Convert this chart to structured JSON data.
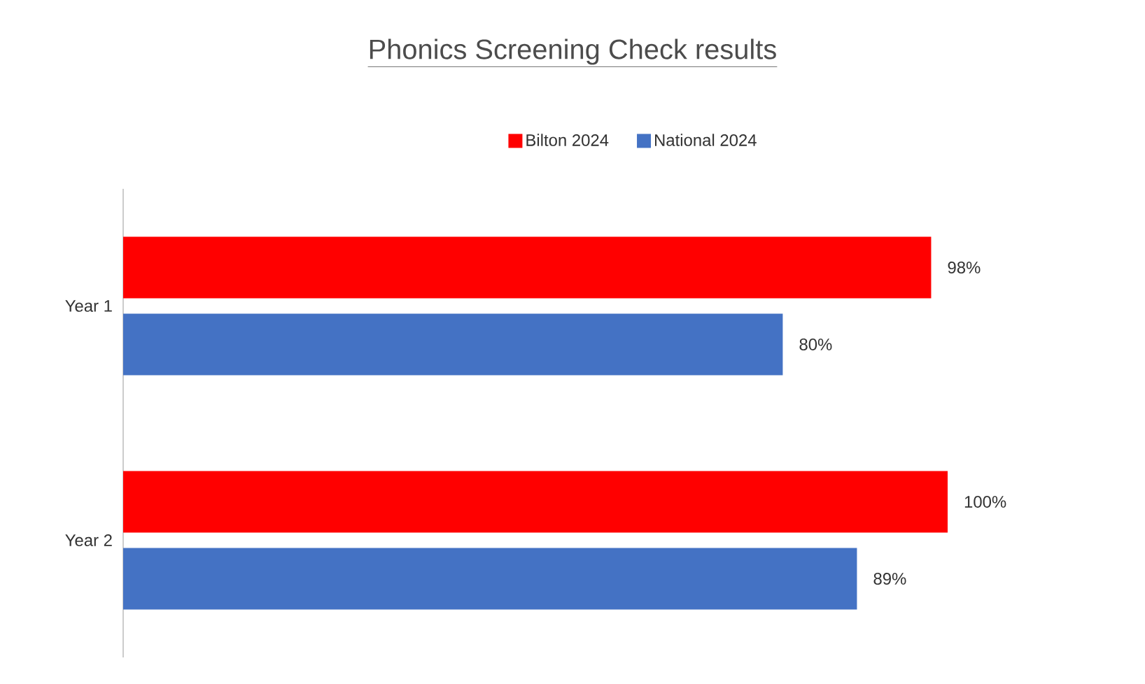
{
  "chart_data": {
    "type": "bar",
    "orientation": "horizontal",
    "title": "Phonics Screening Check results",
    "categories": [
      "Year 1",
      "Year 2"
    ],
    "series": [
      {
        "name": "Bilton 2024",
        "color": "#ff0000",
        "values": [
          98,
          100
        ],
        "value_labels": [
          "98%",
          "100%"
        ]
      },
      {
        "name": "National 2024",
        "color": "#4472c4",
        "values": [
          80,
          89
        ],
        "value_labels": [
          "80%",
          "89%"
        ]
      }
    ],
    "legend": "top"
  }
}
